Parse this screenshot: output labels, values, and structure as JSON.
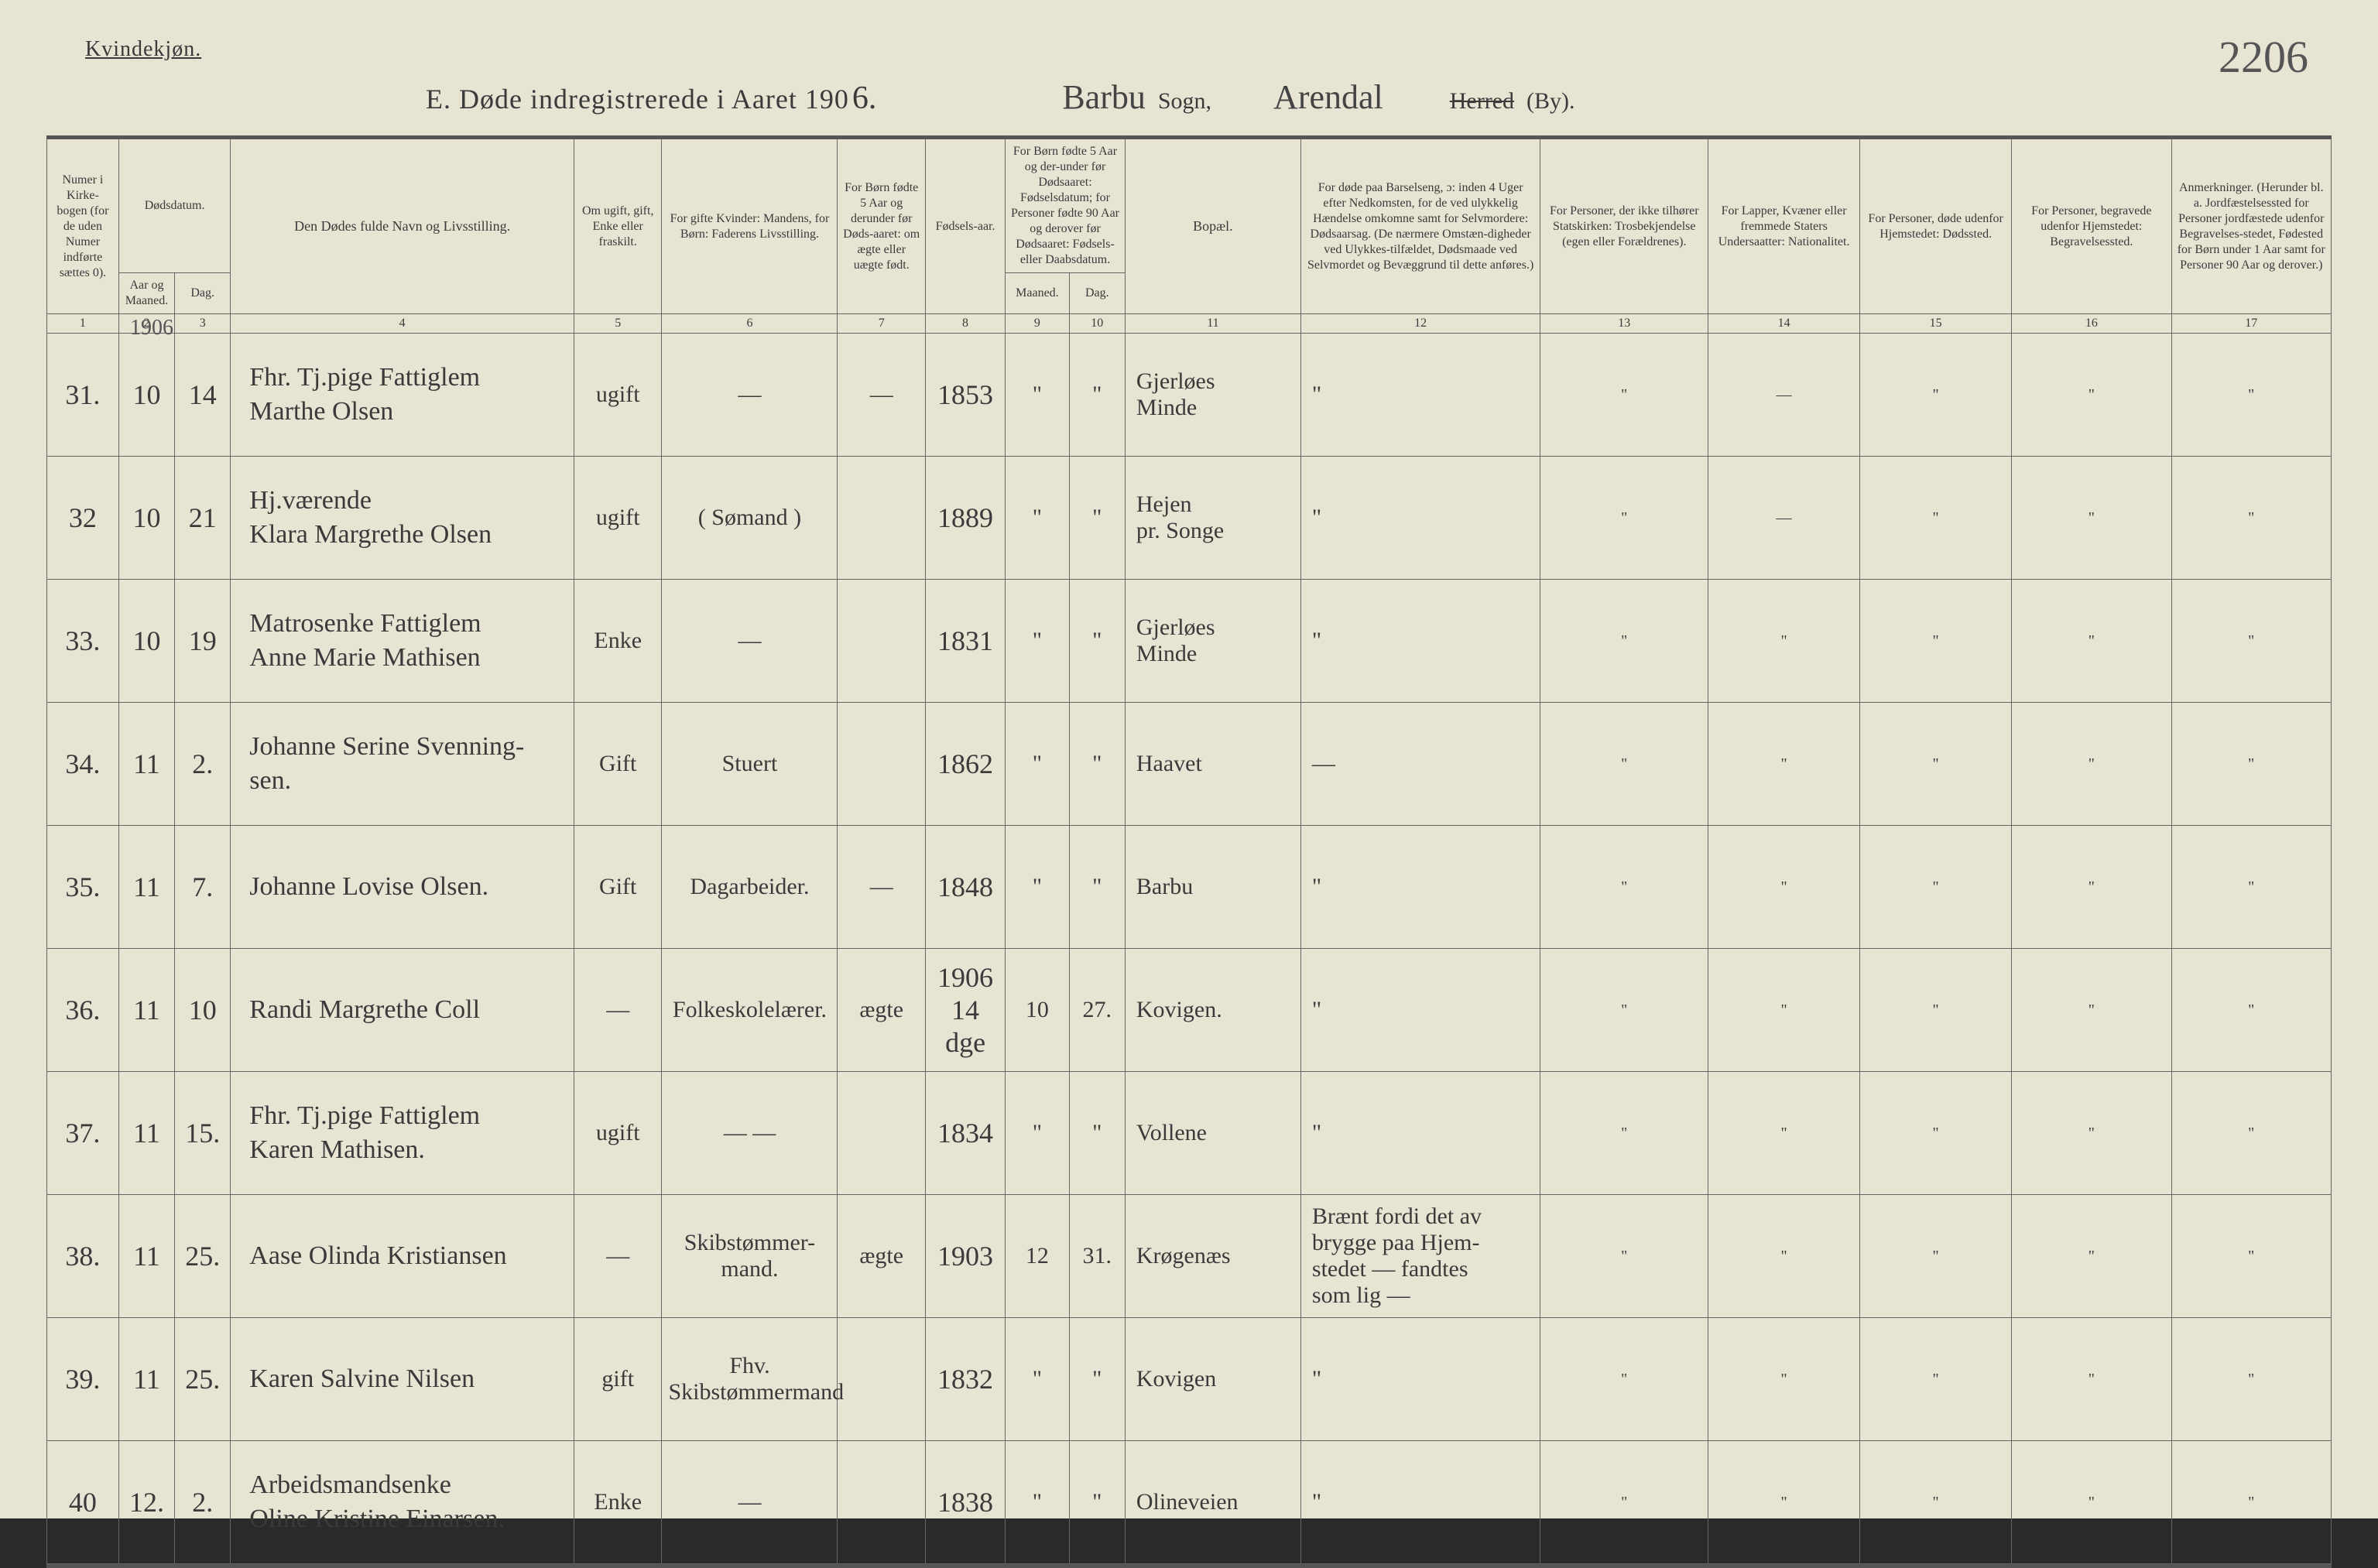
{
  "meta": {
    "corner_label": "Kvindekjøn.",
    "page_number": "2206",
    "title_prefix": "E.  Døde indregistrerede i Aaret 190",
    "title_year_digit": "6.",
    "sogn_value": "Barbu",
    "sogn_label": "Sogn,",
    "herred_value": "Arendal",
    "herred_label_strike": "Herred",
    "herred_label_tail": "(By).",
    "row_year_note": "1906"
  },
  "headers": {
    "col1": "Numer i Kirke-bogen (for de uden Numer indførte sættes 0).",
    "col2_3_top": "Dødsdatum.",
    "col2": "Aar og Maaned.",
    "col3": "Dag.",
    "col4": "Den Dødes fulde Navn og Livsstilling.",
    "col5": "Om ugift, gift, Enke eller fraskilt.",
    "col6": "For gifte Kvinder: Mandens, for Børn: Faderens Livsstilling.",
    "col7": "For Børn fødte 5 Aar og derunder før Døds-aaret: om ægte eller uægte født.",
    "col8": "Fødsels-aar.",
    "col9_10_top": "For Børn fødte 5 Aar og der-under før Dødsaaret: Fødselsdatum; for Personer fødte 90 Aar og derover før Dødsaaret: Fødsels- eller Daabsdatum.",
    "col9": "Maaned.",
    "col10": "Dag.",
    "col11": "Bopæl.",
    "col12": "For døde paa Barselseng, ɔ: inden 4 Uger efter Nedkomsten, for de ved ulykkelig Hændelse omkomne samt for Selvmordere: Dødsaarsag. (De nærmere Omstæn-digheder ved Ulykkes-tilfældet, Dødsmaade ved Selvmordet og Bevæggrund til dette anføres.)",
    "col13": "For Personer, der ikke tilhører Statskirken: Trosbekjendelse (egen eller Forældrenes).",
    "col14": "For Lapper, Kvæner eller fremmede Staters Undersaatter: Nationalitet.",
    "col15": "For Personer, døde udenfor Hjemstedet: Dødssted.",
    "col16": "For Personer, begravede udenfor Hjemstedet: Begravelsessted.",
    "col17": "Anmerkninger. (Herunder bl. a. Jordfæstelsessted for Personer jordfæstede udenfor Begravelses-stedet, Fødested for Børn under 1 Aar samt for Personer 90 Aar og derover.)",
    "nums": [
      "1",
      "2",
      "3",
      "4",
      "5",
      "6",
      "7",
      "8",
      "9",
      "10",
      "11",
      "12",
      "13",
      "14",
      "15",
      "16",
      "17"
    ]
  },
  "rows": [
    {
      "num": "31.",
      "mnd": "10",
      "dag": "14",
      "name": "Fhr. Tj.pige Fattiglem\nMarthe Olsen",
      "civ": "ugift",
      "col6": "—",
      "col7": "—",
      "year": "1853",
      "m": "\"",
      "d": "\"",
      "bopel": "Gjerløes\nMinde",
      "c12": "\"",
      "c13": "\"",
      "c14": "—",
      "c15": "\"",
      "c16": "\"",
      "c17": "\""
    },
    {
      "num": "32",
      "mnd": "10",
      "dag": "21",
      "name": "Hj.værende\nKlara Margrethe Olsen",
      "civ": "ugift",
      "col6": "( Sømand )",
      "col7": "",
      "year": "1889",
      "m": "\"",
      "d": "\"",
      "bopel": "Hejen\npr. Songe",
      "c12": "\"",
      "c13": "\"",
      "c14": "—",
      "c15": "\"",
      "c16": "\"",
      "c17": "\""
    },
    {
      "num": "33.",
      "mnd": "10",
      "dag": "19",
      "name": "Matrosenke Fattiglem\nAnne Marie Mathisen",
      "civ": "Enke",
      "col6": "—",
      "col7": "",
      "year": "1831",
      "m": "\"",
      "d": "\"",
      "bopel": "Gjerløes\nMinde",
      "c12": "\"",
      "c13": "\"",
      "c14": "\"",
      "c15": "\"",
      "c16": "\"",
      "c17": "\""
    },
    {
      "num": "34.",
      "mnd": "11",
      "dag": "2.",
      "name": "Johanne Serine Svenning-\nsen.",
      "civ": "Gift",
      "col6": "Stuert",
      "col7": "",
      "year": "1862",
      "m": "\"",
      "d": "\"",
      "bopel": "Haavet",
      "c12": "—",
      "c13": "\"",
      "c14": "\"",
      "c15": "\"",
      "c16": "\"",
      "c17": "\""
    },
    {
      "num": "35.",
      "mnd": "11",
      "dag": "7.",
      "name": "Johanne Lovise Olsen.",
      "civ": "Gift",
      "col6": "Dagarbeider.",
      "col7": "—",
      "year": "1848",
      "m": "\"",
      "d": "\"",
      "bopel": "Barbu",
      "c12": "\"",
      "c13": "\"",
      "c14": "\"",
      "c15": "\"",
      "c16": "\"",
      "c17": "\""
    },
    {
      "num": "36.",
      "mnd": "11",
      "dag": "10",
      "name": "Randi Margrethe Coll",
      "civ": "—",
      "col6": "Folkeskolelærer.",
      "col7": "ægte",
      "year": "1906\n14 dge",
      "m": "10",
      "d": "27.",
      "bopel": "Kovigen.",
      "c12": "\"",
      "c13": "\"",
      "c14": "\"",
      "c15": "\"",
      "c16": "\"",
      "c17": "\""
    },
    {
      "num": "37.",
      "mnd": "11",
      "dag": "15.",
      "name": "Fhr. Tj.pige Fattiglem\nKaren Mathisen.",
      "civ": "ugift",
      "col6": "— —",
      "col7": "",
      "year": "1834",
      "m": "\"",
      "d": "\"",
      "bopel": "Vollene",
      "c12": "\"",
      "c13": "\"",
      "c14": "\"",
      "c15": "\"",
      "c16": "\"",
      "c17": "\""
    },
    {
      "num": "38.",
      "mnd": "11",
      "dag": "25.",
      "name": "Aase Olinda Kristiansen",
      "civ": "—",
      "col6": "Skibstømmer-\nmand.",
      "col7": "ægte",
      "year": "1903",
      "m": "12",
      "d": "31.",
      "bopel": "Krøgenæs",
      "c12": "Brænt fordi det av\nbrygge paa Hjem-\nstedet — fandtes\nsom lig —",
      "c13": "\"",
      "c14": "\"",
      "c15": "\"",
      "c16": "\"",
      "c17": "\""
    },
    {
      "num": "39.",
      "mnd": "11",
      "dag": "25.",
      "name": "Karen Salvine Nilsen",
      "civ": "gift",
      "col6": "Fhv. Skibstømmermand",
      "col7": "",
      "year": "1832",
      "m": "\"",
      "d": "\"",
      "bopel": "Kovigen",
      "c12": "\"",
      "c13": "\"",
      "c14": "\"",
      "c15": "\"",
      "c16": "\"",
      "c17": "\""
    },
    {
      "num": "40",
      "mnd": "12.",
      "dag": "2.",
      "name": "Arbeidsmandsenke\nOline Kristine Einarsen.",
      "civ": "Enke",
      "col6": "—",
      "col7": "",
      "year": "1838",
      "m": "\"",
      "d": "\"",
      "bopel": "Olineveien",
      "c12": "\"",
      "c13": "\"",
      "c14": "\"",
      "c15": "\"",
      "c16": "\"",
      "c17": "\""
    }
  ]
}
